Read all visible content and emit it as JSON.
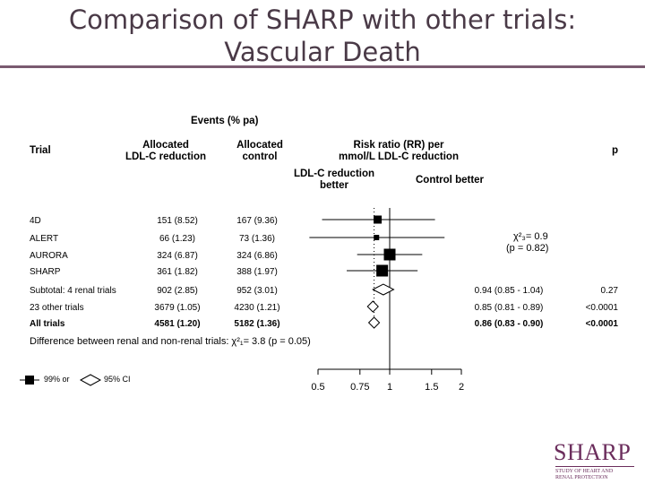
{
  "title_line1": "Comparison of SHARP with other trials:",
  "title_line2": "Vascular Death",
  "headers": {
    "events": "Events (% pa)",
    "trial": "Trial",
    "allocated_ldl": "Allocated\nLDL-C reduction",
    "allocated_control": "Allocated\ncontrol",
    "risk_ratio": "Risk ratio (RR) per\nmmol/L LDL-C reduction",
    "p": "p",
    "ldl_better": "LDL-C reduction\nbetter",
    "control_better": "Control better"
  },
  "heterogeneity": {
    "chi": "χ²₃= 0.9",
    "p": "(p = 0.82)"
  },
  "difference_note": "Difference between renal and non-renal trials: χ²₁= 3.8 (p = 0.05)",
  "legend": {
    "ci99": "99% or",
    "ci95": "95% CI"
  },
  "chart_data": {
    "type": "forest",
    "x_scale": "log",
    "xlim": [
      0.5,
      2
    ],
    "x_ticks": [
      "0.5",
      "0.75",
      "1",
      "1.5",
      "2"
    ],
    "reference_line": 1,
    "rows": [
      {
        "trial": "4D",
        "treat": "151 (8.52)",
        "control": "167 (9.36)",
        "rr": 0.89,
        "lo": 0.52,
        "hi": 1.55,
        "marker": "square",
        "size": 9
      },
      {
        "trial": "ALERT",
        "treat": "66 (1.23)",
        "control": "73 (1.36)",
        "rr": 0.88,
        "lo": 0.46,
        "hi": 1.7,
        "marker": "square",
        "size": 6
      },
      {
        "trial": "AURORA",
        "treat": "324 (6.87)",
        "control": "324 (6.86)",
        "rr": 1.0,
        "lo": 0.73,
        "hi": 1.37,
        "marker": "square",
        "size": 13
      },
      {
        "trial": "SHARP",
        "treat": "361 (1.82)",
        "control": "388 (1.97)",
        "rr": 0.93,
        "lo": 0.66,
        "hi": 1.31,
        "marker": "square",
        "size": 13
      },
      {
        "trial": "Subtotal: 4 renal trials",
        "treat": "902 (2.85)",
        "control": "952 (3.01)",
        "rr": 0.94,
        "lo": 0.85,
        "hi": 1.04,
        "marker": "diamond",
        "ci_text": "0.94 (0.85 - 1.04)",
        "p": "0.27"
      },
      {
        "trial": "23 other trials",
        "treat": "3679 (1.05)",
        "control": "4230 (1.21)",
        "rr": 0.85,
        "lo": 0.81,
        "hi": 0.89,
        "marker": "diamond",
        "ci_text": "0.85 (0.81 - 0.89)",
        "p": "<0.0001"
      },
      {
        "trial": "All trials",
        "treat": "4581 (1.20)",
        "control": "5182 (1.36)",
        "rr": 0.86,
        "lo": 0.83,
        "hi": 0.9,
        "marker": "diamond",
        "ci_text": "0.86 (0.83 - 0.90)",
        "p": "<0.0001",
        "bold": true
      }
    ]
  },
  "logo": {
    "word": "SHARP",
    "line1": "STUDY OF HEART AND",
    "line2": "RENAL PROTECTION"
  }
}
